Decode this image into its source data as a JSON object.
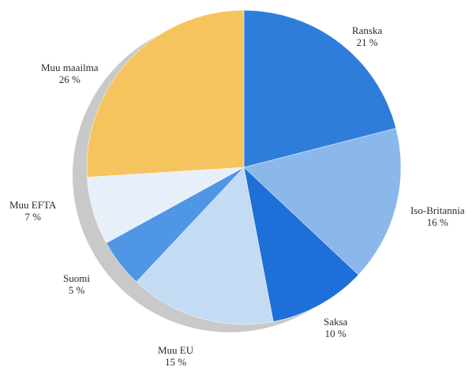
{
  "chart_data": {
    "type": "pie",
    "title": "",
    "slices": [
      {
        "label": "Ranska",
        "value_text": "21 %",
        "value": 21,
        "color": "#2f7ddb"
      },
      {
        "label": "Iso-Britannia",
        "value_text": "16 %",
        "value": 16,
        "color": "#8ab8ea"
      },
      {
        "label": "Saksa",
        "value_text": "10 %",
        "value": 10,
        "color": "#1f6fd8"
      },
      {
        "label": "Muu EU",
        "value_text": "15 %",
        "value": 15,
        "color": "#c4dbf4"
      },
      {
        "label": "Suomi",
        "value_text": "5 %",
        "value": 5,
        "color": "#4f96e4"
      },
      {
        "label": "Muu EFTA",
        "value_text": "7 %",
        "value": 7,
        "color": "#e7eff9"
      },
      {
        "label": "Muu maailma",
        "value_text": "26 %",
        "value": 26,
        "color": "#f6c45e"
      }
    ],
    "shadow_color": "#c9c9c9",
    "start_angle_deg": 0,
    "direction": "clockwise"
  }
}
